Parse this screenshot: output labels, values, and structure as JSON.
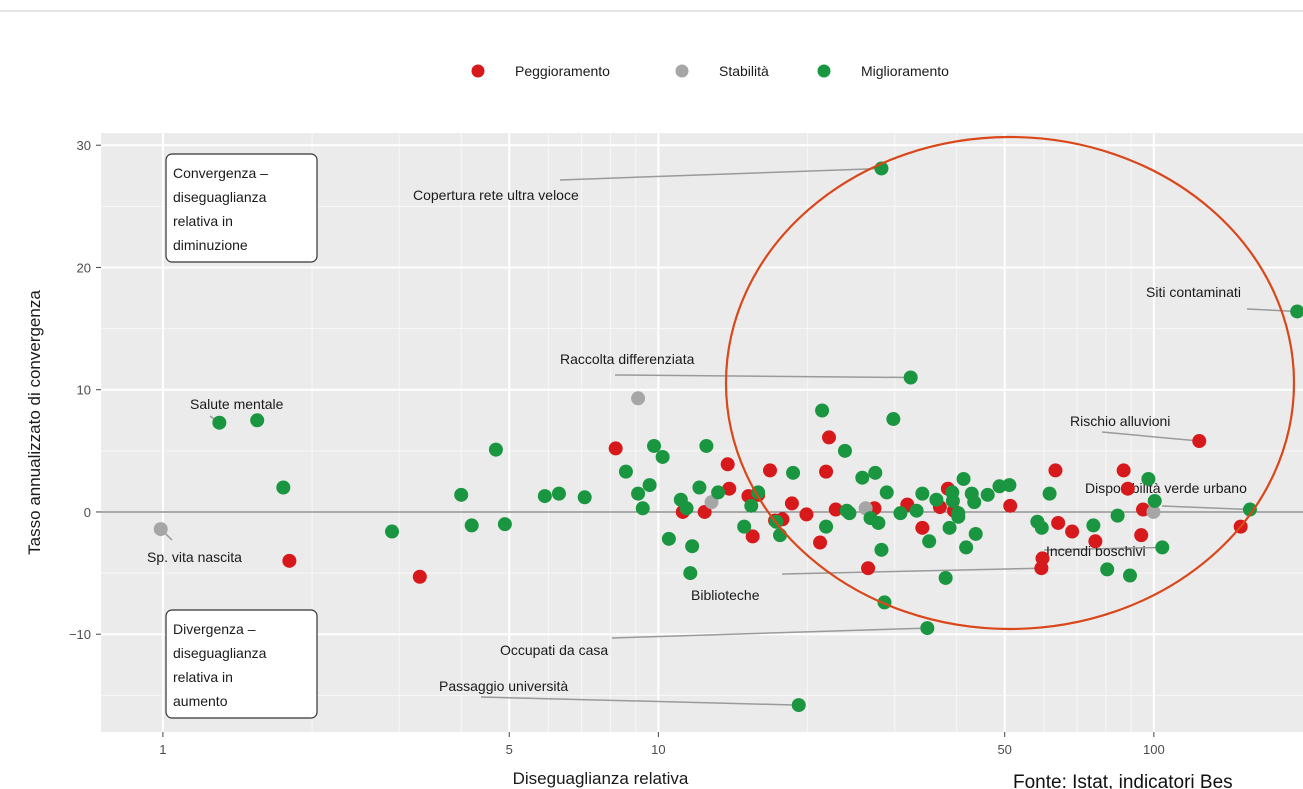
{
  "chart_data": {
    "type": "scatter",
    "x_scale": "log",
    "xlabel": "Diseguaglianza relativa",
    "ylabel": "Tasso annualizzato di convergenza",
    "x_ticks": [
      1,
      5,
      10,
      50,
      100
    ],
    "y_ticks": [
      -10,
      0,
      10,
      20,
      30
    ],
    "xlim": [
      0.75,
      200
    ],
    "ylim": [
      -18,
      31
    ],
    "grid": true,
    "legend_position": "top",
    "series": [
      {
        "name": "Peggioramento",
        "color": "#d7191c",
        "points": [
          [
            1.8,
            -4
          ],
          [
            3.3,
            -5.3
          ],
          [
            8.2,
            5.2
          ],
          [
            11.2,
            0
          ],
          [
            12.4,
            0
          ],
          [
            13.8,
            3.9
          ],
          [
            13.9,
            1.9
          ],
          [
            15.2,
            1.3
          ],
          [
            15.9,
            1.4
          ],
          [
            15.5,
            -2
          ],
          [
            16.8,
            3.4
          ],
          [
            17.2,
            -0.7
          ],
          [
            17.8,
            -0.6
          ],
          [
            18.6,
            0.7
          ],
          [
            19.9,
            -0.2
          ],
          [
            21.2,
            -2.5
          ],
          [
            21.8,
            3.3
          ],
          [
            22.1,
            6.1
          ],
          [
            22.8,
            0.2
          ],
          [
            26.5,
            -4.6
          ],
          [
            27.3,
            0.3
          ],
          [
            31.8,
            0.6
          ],
          [
            34.1,
            -1.3
          ],
          [
            37.0,
            0.4
          ],
          [
            38.4,
            1.9
          ],
          [
            39.5,
            0.1
          ],
          [
            51.3,
            0.5
          ],
          [
            59.3,
            -4.6
          ],
          [
            59.6,
            -3.8
          ],
          [
            63.3,
            3.4
          ],
          [
            64.1,
            -0.9
          ],
          [
            68.4,
            -1.6
          ],
          [
            76.2,
            -2.4
          ],
          [
            86.9,
            3.4
          ],
          [
            88.6,
            1.9
          ],
          [
            94.3,
            -1.9
          ],
          [
            95.1,
            0.2
          ],
          [
            123.5,
            5.8
          ],
          [
            149.7,
            -1.2
          ]
        ]
      },
      {
        "name": "Stabilità",
        "color": "#a6a6a6",
        "points": [
          [
            0.99,
            -1.4
          ],
          [
            9.1,
            9.3
          ],
          [
            12.8,
            0.8
          ],
          [
            26.2,
            0.3
          ],
          [
            99.8,
            0
          ]
        ]
      },
      {
        "name": "Miglioramento",
        "color": "#1a9641",
        "points": [
          [
            1.3,
            7.3
          ],
          [
            1.55,
            7.5
          ],
          [
            1.75,
            2.0
          ],
          [
            2.9,
            -1.6
          ],
          [
            4.0,
            1.4
          ],
          [
            4.2,
            -1.1
          ],
          [
            4.7,
            5.1
          ],
          [
            4.9,
            -1
          ],
          [
            5.9,
            1.3
          ],
          [
            6.3,
            1.5
          ],
          [
            7.1,
            1.2
          ],
          [
            8.6,
            3.3
          ],
          [
            9.1,
            1.5
          ],
          [
            9.3,
            0.3
          ],
          [
            9.6,
            2.2
          ],
          [
            9.8,
            5.4
          ],
          [
            10.2,
            4.5
          ],
          [
            10.5,
            -2.2
          ],
          [
            11.1,
            1.0
          ],
          [
            11.4,
            0.3
          ],
          [
            11.7,
            -2.8
          ],
          [
            11.6,
            -5.0
          ],
          [
            12.1,
            2.0
          ],
          [
            12.5,
            5.4
          ],
          [
            13.2,
            1.6
          ],
          [
            14.9,
            -1.2
          ],
          [
            15.4,
            0.5
          ],
          [
            15.9,
            1.6
          ],
          [
            17.3,
            -0.8
          ],
          [
            17.6,
            -1.9
          ],
          [
            18.7,
            3.2
          ],
          [
            19.2,
            -15.8
          ],
          [
            21.4,
            8.3
          ],
          [
            21.8,
            -1.2
          ],
          [
            23.8,
            5.0
          ],
          [
            24.0,
            0.1
          ],
          [
            24.3,
            -0.1
          ],
          [
            25.8,
            2.8
          ],
          [
            26.8,
            -0.5
          ],
          [
            27.4,
            3.2
          ],
          [
            27.8,
            -0.9
          ],
          [
            28.2,
            28.1
          ],
          [
            28.2,
            -3.1
          ],
          [
            28.6,
            -7.4
          ],
          [
            28.9,
            1.6
          ],
          [
            29.8,
            7.6
          ],
          [
            30.8,
            -0.1
          ],
          [
            32.3,
            11.0
          ],
          [
            33.2,
            0.1
          ],
          [
            34.1,
            1.5
          ],
          [
            34.9,
            -9.5
          ],
          [
            35.2,
            -2.4
          ],
          [
            36.4,
            1.0
          ],
          [
            38.0,
            -5.4
          ],
          [
            38.7,
            -1.3
          ],
          [
            39.2,
            1.6
          ],
          [
            39.3,
            0.9
          ],
          [
            40.3,
            -0.4
          ],
          [
            40.3,
            -0.1
          ],
          [
            41.3,
            2.7
          ],
          [
            41.8,
            -2.9
          ],
          [
            42.9,
            1.5
          ],
          [
            43.4,
            0.8
          ],
          [
            43.7,
            -1.8
          ],
          [
            46.2,
            1.4
          ],
          [
            48.8,
            2.1
          ],
          [
            51.1,
            2.2
          ],
          [
            58.2,
            -0.8
          ],
          [
            59.4,
            -1.3
          ],
          [
            61.6,
            1.5
          ],
          [
            75.5,
            -1.1
          ],
          [
            80.5,
            -4.7
          ],
          [
            84.5,
            -0.3
          ],
          [
            89.5,
            -5.2
          ],
          [
            97.5,
            2.7
          ],
          [
            100.4,
            0.9
          ],
          [
            104.0,
            -2.9
          ],
          [
            156.3,
            0.2
          ],
          [
            194.7,
            16.4
          ]
        ]
      }
    ],
    "annotations": [
      {
        "text": "Copertura rete ultra veloce",
        "x": 28.2,
        "y": 28.1
      },
      {
        "text": "Raccolta differenziata",
        "x": 32.3,
        "y": 11.0
      },
      {
        "text": "Salute mentale",
        "x": 1.3,
        "y": 7.3
      },
      {
        "text": "Sp. vita nascita",
        "x": 0.99,
        "y": -1.4
      },
      {
        "text": "Biblioteche",
        "x": 59.3,
        "y": -4.6
      },
      {
        "text": "Occupati da casa",
        "x": 34.9,
        "y": -9.5
      },
      {
        "text": "Passaggio università",
        "x": 19.2,
        "y": -15.8
      },
      {
        "text": "Siti contaminati",
        "x": 194.7,
        "y": 16.4
      },
      {
        "text": "Rischio alluvioni",
        "x": 123.5,
        "y": 5.8
      },
      {
        "text": "Disponibilità verde urbano",
        "x": 156.3,
        "y": 0.2
      },
      {
        "text": "Incendi boschivi",
        "x": 104.0,
        "y": -2.9
      }
    ],
    "boxes": [
      {
        "lines": [
          "Convergenza –",
          "diseguaglianza",
          "relativa in",
          "diminuzione"
        ]
      },
      {
        "lines": [
          "Divergenza –",
          "diseguaglianza",
          "relativa in",
          "aumento"
        ]
      }
    ]
  },
  "source": "Fonte: Istat, indicatori Bes"
}
